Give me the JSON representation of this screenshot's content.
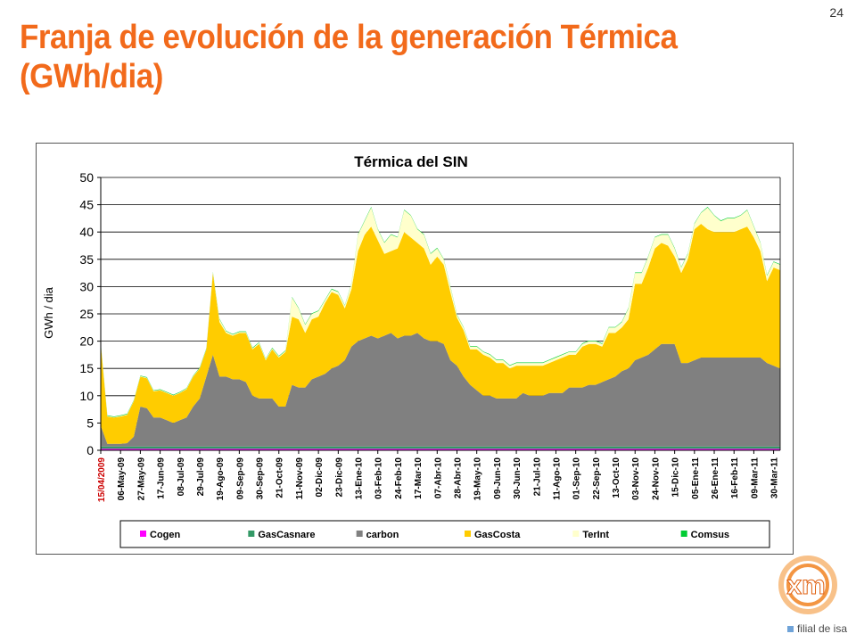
{
  "slide": {
    "page_number": "24",
    "title_line1": "Franja de evolución de la generación Térmica",
    "title_line2": "(GWh/dia)",
    "logo_text": "xm",
    "logo_tagline": "filial de isa"
  },
  "colors": {
    "title": "#f26a1b",
    "Cogen": "#ff00ff",
    "GasCasnare": "#339966",
    "carbon": "#808080",
    "GasCosta": "#ffcc00",
    "TerInt": "#ffffcc",
    "Comsus": "#00cc33"
  },
  "chart_data": {
    "type": "area",
    "stacked": true,
    "title": "Térmica del SIN",
    "xlabel": "",
    "ylabel": "GWh / dia",
    "ylim": [
      0,
      50
    ],
    "yticks": [
      0,
      5,
      10,
      15,
      20,
      25,
      30,
      35,
      40,
      45,
      50
    ],
    "grid": "horizontal",
    "legend_position": "bottom",
    "x_tick_labels": [
      "15/04/2009",
      "06-May-09",
      "27-May-09",
      "17-Jun-09",
      "08-Jul-09",
      "29-Jul-09",
      "19-Ago-09",
      "09-Sep-09",
      "30-Sep-09",
      "21-Oct-09",
      "11-Nov-09",
      "02-Dic-09",
      "23-Dic-09",
      "13-Ene-10",
      "03-Feb-10",
      "24-Feb-10",
      "17-Mar-10",
      "07-Abr-10",
      "28-Abr-10",
      "19-May-10",
      "09-Jun-10",
      "30-Jun-10",
      "21-Jul-10",
      "11-Ago-10",
      "01-Sep-10",
      "22-Sep-10",
      "13-Oct-10",
      "03-Nov-10",
      "24-Nov-10",
      "15-Dic-10",
      "05-Ene-11",
      "26-Ene-11",
      "16-Feb-11",
      "09-Mar-11",
      "30-Mar-11"
    ],
    "x": [
      "15/04/2009",
      "22/04/2009",
      "29/04/2009",
      "06/05/2009",
      "13/05/2009",
      "20/05/2009",
      "27/05/2009",
      "03/06/2009",
      "10/06/2009",
      "17/06/2009",
      "24/06/2009",
      "01/07/2009",
      "08/07/2009",
      "15/07/2009",
      "22/07/2009",
      "29/07/2009",
      "05/08/2009",
      "12/08/2009",
      "19/08/2009",
      "26/08/2009",
      "02/09/2009",
      "09/09/2009",
      "16/09/2009",
      "23/09/2009",
      "30/09/2009",
      "07/10/2009",
      "14/10/2009",
      "21/10/2009",
      "28/10/2009",
      "04/11/2009",
      "11/11/2009",
      "18/11/2009",
      "25/11/2009",
      "02/12/2009",
      "09/12/2009",
      "16/12/2009",
      "23/12/2009",
      "30/12/2009",
      "06/01/2010",
      "13/01/2010",
      "20/01/2010",
      "27/01/2010",
      "03/02/2010",
      "10/02/2010",
      "17/02/2010",
      "24/02/2010",
      "03/03/2010",
      "10/03/2010",
      "17/03/2010",
      "24/03/2010",
      "31/03/2010",
      "07/04/2010",
      "14/04/2010",
      "21/04/2010",
      "28/04/2010",
      "05/05/2010",
      "12/05/2010",
      "19/05/2010",
      "26/05/2010",
      "02/06/2010",
      "09/06/2010",
      "16/06/2010",
      "23/06/2010",
      "30/06/2010",
      "07/07/2010",
      "14/07/2010",
      "21/07/2010",
      "28/07/2010",
      "04/08/2010",
      "11/08/2010",
      "18/08/2010",
      "25/08/2010",
      "01/09/2010",
      "08/09/2010",
      "15/09/2010",
      "22/09/2010",
      "29/09/2010",
      "06/10/2010",
      "13/10/2010",
      "20/10/2010",
      "27/10/2010",
      "03/11/2010",
      "10/11/2010",
      "17/11/2010",
      "24/11/2010",
      "01/12/2010",
      "08/12/2010",
      "15/12/2010",
      "22/12/2010",
      "29/12/2010",
      "05/01/2011",
      "12/01/2011",
      "19/01/2011",
      "26/01/2011",
      "02/02/2011",
      "09/02/2011",
      "16/02/2011",
      "23/02/2011",
      "02/03/2011",
      "09/03/2011",
      "16/03/2011",
      "23/03/2011",
      "30/03/2011",
      "06/04/2011"
    ],
    "series": [
      {
        "name": "Cogen",
        "values": [
          0.3,
          0.3,
          0.3,
          0.3,
          0.3,
          0.3,
          0.3,
          0.3,
          0.3,
          0.3,
          0.3,
          0.3,
          0.3,
          0.3,
          0.3,
          0.3,
          0.3,
          0.3,
          0.3,
          0.3,
          0.3,
          0.3,
          0.3,
          0.3,
          0.3,
          0.3,
          0.3,
          0.3,
          0.3,
          0.3,
          0.3,
          0.3,
          0.3,
          0.3,
          0.3,
          0.3,
          0.3,
          0.3,
          0.3,
          0.3,
          0.3,
          0.3,
          0.3,
          0.3,
          0.3,
          0.3,
          0.3,
          0.3,
          0.3,
          0.3,
          0.3,
          0.3,
          0.3,
          0.3,
          0.3,
          0.3,
          0.3,
          0.3,
          0.3,
          0.3,
          0.3,
          0.3,
          0.3,
          0.3,
          0.3,
          0.3,
          0.3,
          0.3,
          0.3,
          0.3,
          0.3,
          0.3,
          0.3,
          0.3,
          0.3,
          0.3,
          0.3,
          0.3,
          0.3,
          0.3,
          0.3,
          0.3,
          0.3,
          0.3,
          0.3,
          0.3,
          0.3,
          0.3,
          0.3,
          0.3,
          0.3,
          0.3,
          0.3,
          0.3,
          0.3,
          0.3,
          0.3,
          0.3,
          0.3,
          0.3,
          0.3,
          0.3,
          0.3,
          0.3
        ]
      },
      {
        "name": "GasCasnare",
        "values": [
          0.4,
          0.4,
          0.4,
          0.4,
          0.4,
          0.4,
          0.4,
          0.4,
          0.4,
          0.4,
          0.4,
          0.4,
          0.4,
          0.4,
          0.4,
          0.4,
          0.4,
          0.4,
          0.4,
          0.4,
          0.4,
          0.4,
          0.4,
          0.4,
          0.4,
          0.4,
          0.4,
          0.4,
          0.4,
          0.4,
          0.4,
          0.4,
          0.4,
          0.4,
          0.4,
          0.4,
          0.4,
          0.4,
          0.4,
          0.4,
          0.4,
          0.4,
          0.4,
          0.4,
          0.4,
          0.4,
          0.4,
          0.4,
          0.4,
          0.4,
          0.4,
          0.4,
          0.4,
          0.4,
          0.4,
          0.4,
          0.4,
          0.4,
          0.4,
          0.4,
          0.4,
          0.4,
          0.4,
          0.4,
          0.4,
          0.4,
          0.4,
          0.4,
          0.4,
          0.4,
          0.4,
          0.4,
          0.4,
          0.4,
          0.4,
          0.4,
          0.4,
          0.4,
          0.4,
          0.4,
          0.4,
          0.4,
          0.4,
          0.4,
          0.4,
          0.4,
          0.4,
          0.4,
          0.4,
          0.4,
          0.4,
          0.4,
          0.4,
          0.4,
          0.4,
          0.4,
          0.4,
          0.4,
          0.4,
          0.4,
          0.4,
          0.4,
          0.4,
          0.4
        ]
      },
      {
        "name": "carbon",
        "values": [
          3.8,
          0.5,
          0.5,
          0.5,
          0.6,
          1.8,
          7.3,
          7.0,
          5.3,
          5.3,
          4.8,
          4.3,
          4.8,
          5.3,
          7.3,
          8.8,
          12.8,
          16.8,
          12.8,
          12.8,
          12.3,
          12.3,
          11.8,
          9.3,
          8.8,
          8.8,
          8.8,
          7.3,
          7.3,
          11.3,
          10.8,
          10.8,
          12.3,
          12.8,
          13.3,
          14.3,
          14.8,
          15.8,
          18.3,
          19.3,
          19.8,
          20.3,
          19.8,
          20.3,
          20.8,
          19.8,
          20.3,
          20.3,
          20.8,
          19.8,
          19.3,
          19.3,
          18.8,
          15.8,
          14.8,
          12.8,
          11.3,
          10.3,
          9.3,
          9.3,
          8.8,
          8.8,
          8.8,
          8.8,
          9.8,
          9.3,
          9.3,
          9.3,
          9.8,
          9.8,
          9.8,
          10.8,
          10.8,
          10.8,
          11.3,
          11.3,
          11.8,
          12.3,
          12.8,
          13.8,
          14.3,
          15.8,
          16.3,
          16.8,
          17.8,
          18.8,
          18.8,
          18.8,
          15.3,
          15.3,
          15.8,
          16.3,
          16.3,
          16.3,
          16.3,
          16.3,
          16.3,
          16.3,
          16.3,
          16.3,
          16.3,
          15.3,
          14.8,
          14.3
        ]
      },
      {
        "name": "GasCosta",
        "values": [
          15.0,
          5.0,
          4.8,
          5.0,
          5.2,
          6.5,
          5.5,
          5.5,
          4.8,
          5.0,
          5.0,
          5.0,
          5.0,
          5.2,
          5.5,
          5.5,
          5.0,
          15.0,
          10.0,
          8.0,
          8.0,
          8.5,
          9.0,
          8.5,
          10.0,
          7.0,
          9.0,
          9.0,
          10.0,
          12.5,
          12.5,
          10.0,
          11.0,
          11.0,
          13.0,
          14.0,
          13.0,
          9.5,
          10.5,
          16.5,
          19.0,
          20.0,
          18.0,
          15.0,
          15.0,
          16.5,
          19.0,
          18.0,
          16.5,
          16.5,
          14.0,
          15.5,
          14.5,
          12.5,
          8.8,
          8.5,
          6.5,
          7.5,
          7.5,
          7.0,
          6.5,
          6.5,
          5.5,
          6.0,
          5.0,
          5.5,
          5.5,
          5.5,
          5.5,
          6.0,
          6.5,
          6.0,
          6.0,
          7.5,
          7.5,
          7.5,
          6.5,
          8.5,
          8.0,
          8.0,
          9.0,
          14.0,
          13.5,
          16.0,
          18.5,
          18.5,
          18.0,
          16.0,
          16.5,
          19.0,
          24.0,
          24.5,
          23.5,
          23.0,
          23.0,
          23.0,
          23.0,
          23.5,
          24.0,
          22.0,
          19.5,
          15.0,
          18.0,
          18.0
        ]
      },
      {
        "name": "TerInt",
        "values": [
          0.1,
          0.1,
          0.1,
          0.1,
          0.1,
          0.1,
          0.1,
          0.1,
          0.1,
          0.1,
          0.1,
          0.1,
          0.1,
          0.1,
          0.1,
          0.1,
          0.1,
          0.1,
          0.5,
          0.3,
          0.2,
          0.2,
          0.2,
          0.2,
          0.2,
          0.2,
          0.2,
          0.2,
          0.2,
          3.5,
          2.0,
          1.5,
          1.0,
          1.0,
          0.5,
          0.5,
          0.5,
          0.5,
          1.0,
          3.0,
          2.5,
          3.5,
          2.0,
          2.0,
          3.0,
          2.0,
          4.0,
          4.0,
          2.5,
          2.5,
          2.0,
          1.5,
          1.0,
          1.0,
          0.5,
          0.5,
          0.5,
          0.5,
          0.5,
          0.5,
          0.5,
          0.5,
          0.5,
          0.5,
          0.5,
          0.5,
          0.5,
          0.5,
          0.5,
          0.5,
          0.5,
          0.5,
          0.5,
          0.5,
          0.5,
          0.5,
          0.5,
          1.0,
          1.0,
          1.0,
          2.0,
          2.0,
          2.0,
          2.0,
          2.0,
          1.5,
          2.0,
          1.5,
          1.0,
          1.0,
          1.0,
          2.0,
          4.0,
          3.0,
          2.0,
          2.5,
          2.5,
          2.5,
          3.0,
          2.0,
          1.5,
          1.0,
          1.0,
          1.0
        ]
      },
      {
        "name": "Comsus",
        "values": [
          0.1,
          0.1,
          0.1,
          0.1,
          0.1,
          0.1,
          0.1,
          0.1,
          0.1,
          0.1,
          0.1,
          0.1,
          0.1,
          0.1,
          0.1,
          0.1,
          0.1,
          0.1,
          0.1,
          0.1,
          0.1,
          0.1,
          0.1,
          0.1,
          0.1,
          0.1,
          0.1,
          0.1,
          0.1,
          0.1,
          0.1,
          0.1,
          0.1,
          0.1,
          0.1,
          0.1,
          0.1,
          0.1,
          0.1,
          0.1,
          0.1,
          0.1,
          0.1,
          0.1,
          0.1,
          0.1,
          0.1,
          0.1,
          0.1,
          0.1,
          0.1,
          0.1,
          0.1,
          0.1,
          0.1,
          0.1,
          0.1,
          0.1,
          0.1,
          0.1,
          0.1,
          0.1,
          0.1,
          0.1,
          0.1,
          0.1,
          0.1,
          0.1,
          0.1,
          0.1,
          0.1,
          0.1,
          0.1,
          0.1,
          0.1,
          0.1,
          0.1,
          0.1,
          0.1,
          0.1,
          0.1,
          0.1,
          0.1,
          0.1,
          0.1,
          0.1,
          0.1,
          0.1,
          0.1,
          0.1,
          0.1,
          0.1,
          0.1,
          0.1,
          0.1,
          0.1,
          0.1,
          0.1,
          0.1,
          0.1,
          0.1,
          0.1,
          0.1,
          0.1
        ]
      }
    ]
  }
}
